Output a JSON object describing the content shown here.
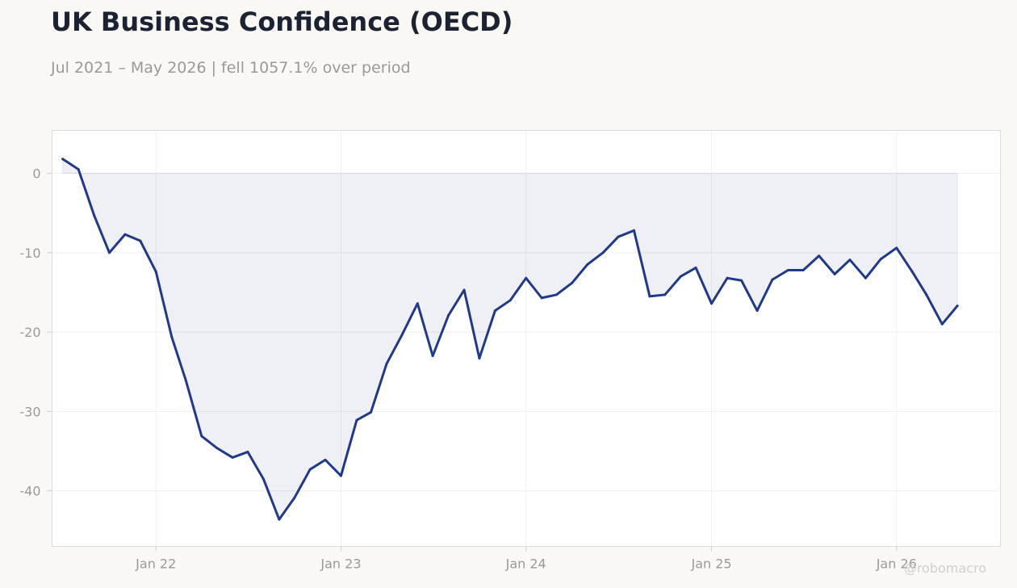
{
  "title": "UK Business Confidence (OECD)",
  "subtitle": "Jul 2021 – May 2026 | fell 1057.1% over period",
  "watermark": "@robomacro",
  "colors": {
    "background": "#f9f8f5",
    "plot_background": "#ffffff",
    "line": "#213a87",
    "fill": "#213a87",
    "text": "#1b2333",
    "muted_text": "#999999"
  },
  "chart_data": {
    "type": "area",
    "title": "UK Business Confidence (OECD)",
    "subtitle": "Jul 2021 – May 2026 | fell 1057.1% over period",
    "xlabel": "",
    "ylabel": "",
    "x_start": "2021-07",
    "x_frequency": "monthly",
    "xlim": [
      "2021-06-10",
      "2026-07-25"
    ],
    "ylim": [
      -47,
      5.4
    ],
    "grid": true,
    "legend": "none",
    "baseline": 0,
    "x_ticks": [
      {
        "date": "2022-01",
        "label": "Jan 22"
      },
      {
        "date": "2023-01",
        "label": "Jan 23"
      },
      {
        "date": "2024-01",
        "label": "Jan 24"
      },
      {
        "date": "2025-01",
        "label": "Jan 25"
      },
      {
        "date": "2026-01",
        "label": "Jan 26"
      }
    ],
    "y_ticks": [
      0,
      -10,
      -20,
      -30,
      -40
    ],
    "series": [
      {
        "values": [
          1.8,
          0.5,
          -5.3,
          -10.0,
          -7.7,
          -8.5,
          -12.4,
          -20.6,
          -26.1,
          -33.1,
          -34.6,
          -35.8,
          -35.1,
          -38.5,
          -43.6,
          -40.9,
          -37.3,
          -36.1,
          -38.1,
          -31.1,
          -30.1,
          -24.0,
          -20.4,
          -16.4,
          -23.0,
          -17.9,
          -14.7,
          -23.3,
          -17.3,
          -16.0,
          -13.2,
          -15.7,
          -15.3,
          -13.8,
          -11.5,
          -10.0,
          -8.0,
          -7.2,
          -15.5,
          -15.3,
          -13.0,
          -11.9,
          -16.4,
          -13.2,
          -13.5,
          -17.3,
          -13.4,
          -12.2,
          -12.2,
          -10.4,
          -12.7,
          -10.9,
          -13.2,
          -10.8,
          -9.4,
          -12.4,
          -15.3,
          -19.0,
          -16.7
        ]
      }
    ]
  }
}
